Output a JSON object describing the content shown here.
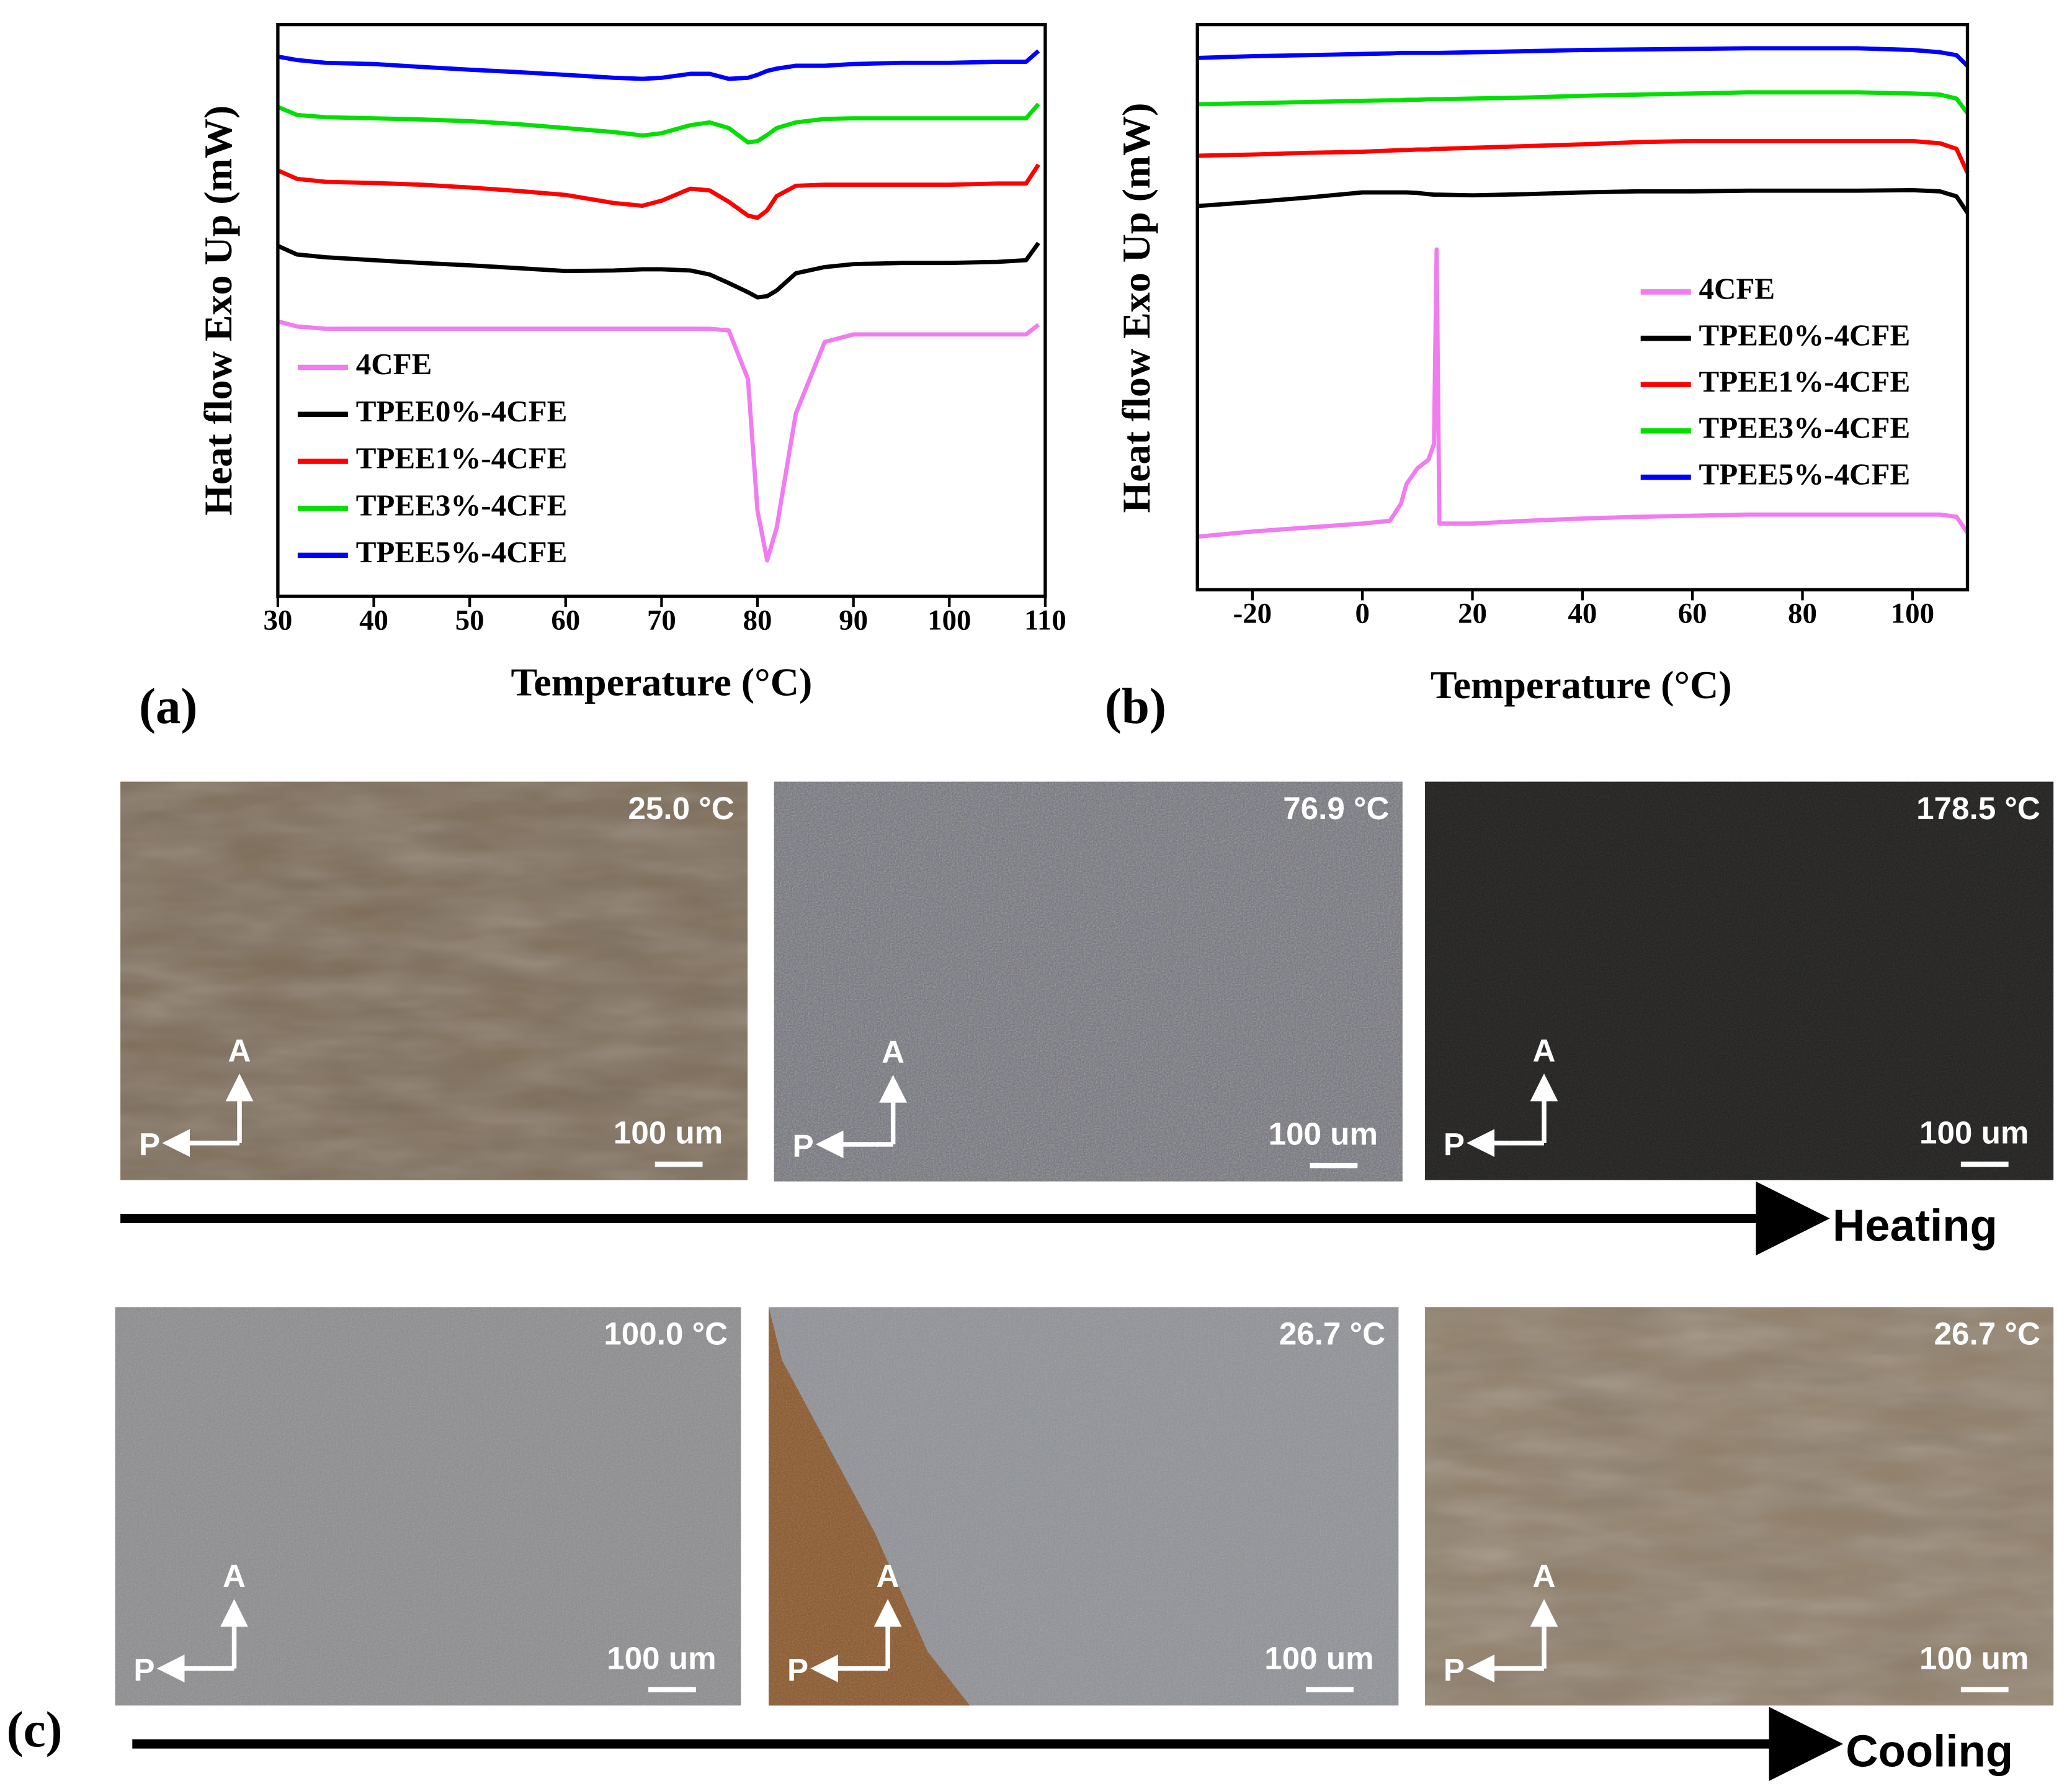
{
  "chart_data": [
    {
      "type": "line",
      "panel_label": "(a)",
      "x_label": "Temperature (°C)",
      "y_label": "Heat flow Exo Up (mW)",
      "xlim": [
        30,
        110
      ],
      "xticks": [
        30,
        40,
        50,
        60,
        70,
        80,
        90,
        100,
        110
      ],
      "ylim": [
        0,
        100
      ],
      "legend": "lower-left",
      "x": [
        30,
        32,
        35,
        40,
        45,
        50,
        55,
        60,
        65,
        68,
        70,
        73,
        75,
        77,
        79,
        80,
        81,
        82,
        84,
        87,
        90,
        95,
        100,
        105,
        108,
        109.3
      ],
      "series": [
        {
          "name": "4CFE",
          "color": "#f07cf0",
          "values": [
            48.1,
            47.2,
            46.8,
            46.8,
            46.8,
            46.8,
            46.8,
            46.8,
            46.8,
            46.8,
            46.8,
            46.8,
            46.8,
            46.5,
            38,
            15,
            6.3,
            12,
            32,
            44.5,
            45.8,
            45.8,
            45.8,
            45.8,
            45.8,
            47.5
          ]
        },
        {
          "name": "TPEE0%-4CFE",
          "color": "#000000",
          "values": [
            61.3,
            59.8,
            59.3,
            58.8,
            58.3,
            57.9,
            57.4,
            56.9,
            57.0,
            57.2,
            57.2,
            57.0,
            56.3,
            54.8,
            53.2,
            52.3,
            52.5,
            53.5,
            56.5,
            57.6,
            58.1,
            58.3,
            58.3,
            58.5,
            58.8,
            61.8
          ]
        },
        {
          "name": "TPEE1%-4CFE",
          "color": "#ff0000",
          "values": [
            74.5,
            73.0,
            72.5,
            72.3,
            72.0,
            71.5,
            70.9,
            70.2,
            68.8,
            68.3,
            69.2,
            71.3,
            71.0,
            69.0,
            66.6,
            66.2,
            67.5,
            70.0,
            71.8,
            72.0,
            72.0,
            72.0,
            72.0,
            72.2,
            72.2,
            75.5
          ]
        },
        {
          "name": "TPEE3%-4CFE",
          "color": "#00e000",
          "values": [
            85.6,
            84.2,
            83.8,
            83.6,
            83.4,
            83.1,
            82.6,
            81.9,
            81.2,
            80.6,
            81.0,
            82.4,
            82.9,
            81.9,
            79.4,
            79.6,
            80.7,
            81.9,
            82.9,
            83.5,
            83.6,
            83.6,
            83.6,
            83.6,
            83.6,
            86.1
          ]
        },
        {
          "name": "TPEE5%-4CFE",
          "color": "#0000ff",
          "values": [
            94.4,
            93.8,
            93.3,
            93.1,
            92.6,
            92.1,
            91.7,
            91.2,
            90.7,
            90.5,
            90.7,
            91.4,
            91.4,
            90.5,
            90.7,
            91.2,
            91.9,
            92.3,
            92.8,
            92.8,
            93.1,
            93.3,
            93.3,
            93.5,
            93.5,
            95.4
          ]
        }
      ]
    },
    {
      "type": "line",
      "panel_label": "(b)",
      "x_label": "Temperature (°C)",
      "y_label": "Heat flow Exo Up (mW)",
      "xlim": [
        -30,
        110
      ],
      "xticks": [
        -20,
        0,
        20,
        40,
        60,
        80,
        100
      ],
      "ylim": [
        0,
        100
      ],
      "legend": "center-right",
      "x": [
        -30,
        -20,
        -10,
        0,
        5,
        7,
        8,
        10,
        12,
        13,
        13.5,
        14,
        20,
        30,
        40,
        50,
        60,
        70,
        80,
        90,
        100,
        105,
        108,
        110
      ],
      "series": [
        {
          "name": "4CFE",
          "color": "#f07cf0",
          "values": [
            9.4,
            10.3,
            11.0,
            11.7,
            12.2,
            15.2,
            18.7,
            21.5,
            23.0,
            25.8,
            60.2,
            11.7,
            11.7,
            12.2,
            12.6,
            12.9,
            13.1,
            13.3,
            13.3,
            13.3,
            13.3,
            13.3,
            12.9,
            10.1
          ]
        },
        {
          "name": "TPEE0%-4CFE",
          "color": "#000000",
          "values": [
            67.9,
            68.6,
            69.4,
            70.3,
            70.3,
            70.3,
            70.3,
            70.2,
            70.0,
            69.9,
            69.9,
            69.9,
            69.8,
            70.0,
            70.3,
            70.5,
            70.5,
            70.6,
            70.6,
            70.6,
            70.7,
            70.5,
            69.6,
            66.7
          ]
        },
        {
          "name": "TPEE1%-4CFE",
          "color": "#ff0000",
          "values": [
            76.8,
            77.0,
            77.3,
            77.5,
            77.7,
            77.8,
            77.8,
            77.9,
            77.9,
            78.0,
            78.0,
            78.0,
            78.2,
            78.5,
            78.8,
            79.2,
            79.4,
            79.4,
            79.4,
            79.4,
            79.4,
            79.0,
            78.0,
            73.8
          ]
        },
        {
          "name": "TPEE3%-4CFE",
          "color": "#00e000",
          "values": [
            85.9,
            86.1,
            86.3,
            86.5,
            86.6,
            86.6,
            86.7,
            86.7,
            86.8,
            86.8,
            86.8,
            86.8,
            86.9,
            87.1,
            87.4,
            87.6,
            87.8,
            88.0,
            88.0,
            88.0,
            87.8,
            87.6,
            86.9,
            84.3
          ]
        },
        {
          "name": "TPEE5%-4CFE",
          "color": "#0000ff",
          "values": [
            94.1,
            94.4,
            94.6,
            94.8,
            94.9,
            95.0,
            95.0,
            95.0,
            95.0,
            95.0,
            95.0,
            95.0,
            95.1,
            95.3,
            95.5,
            95.6,
            95.7,
            95.8,
            95.8,
            95.8,
            95.5,
            95.1,
            94.6,
            92.7
          ]
        }
      ]
    }
  ],
  "micrographs": {
    "panel_label": "(c)",
    "rows": [
      {
        "label": "Heating",
        "images": [
          {
            "temperature": "25.0 °C",
            "analyzer": "A",
            "polarizer": "P",
            "scale_bar": "100 um"
          },
          {
            "temperature": "76.9 °C",
            "analyzer": "A",
            "polarizer": "P",
            "scale_bar": "100 um"
          },
          {
            "temperature": "178.5 °C",
            "analyzer": "A",
            "polarizer": "P",
            "scale_bar": "100 um"
          }
        ]
      },
      {
        "label": "Cooling",
        "images": [
          {
            "temperature": "100.0 °C",
            "analyzer": "A",
            "polarizer": "P",
            "scale_bar": "100 um"
          },
          {
            "temperature": "26.7 °C",
            "analyzer": "A",
            "polarizer": "P",
            "scale_bar": "100 um"
          },
          {
            "temperature": "26.7 °C",
            "analyzer": "A",
            "polarizer": "P",
            "scale_bar": "100 um"
          }
        ]
      }
    ]
  }
}
